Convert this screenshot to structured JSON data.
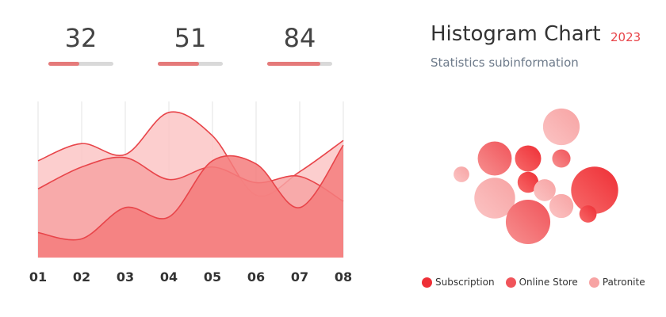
{
  "stats": [
    {
      "value": "32",
      "progress": 0.48
    },
    {
      "value": "51",
      "progress": 0.64
    },
    {
      "value": "84",
      "progress": 0.82
    }
  ],
  "header": {
    "title": "Histogram Chart",
    "year": "2023",
    "subtitle": "Statistics subinformation"
  },
  "colors": {
    "accent": "#e8454a",
    "subscription": "#ee2f36",
    "online_store": "#f0545a",
    "patronite": "#f7a3a3",
    "grid": "#e3e3e3",
    "progress_track": "#d9d9d9",
    "progress_fill": "#e57a7a"
  },
  "chart_data": [
    {
      "type": "area",
      "categories": [
        "01",
        "02",
        "03",
        "04",
        "05",
        "06",
        "07",
        "08"
      ],
      "ylim": [
        0,
        100
      ],
      "grid": true,
      "series": [
        {
          "values": [
            16,
            12,
            32,
            26,
            62,
            60,
            32,
            72
          ],
          "fill": "#f47c7c",
          "stroke": "#e8454a"
        },
        {
          "values": [
            44,
            58,
            64,
            50,
            58,
            48,
            52,
            36
          ],
          "fill": "#f7a3a3",
          "stroke": "#e8454a"
        },
        {
          "values": [
            62,
            73,
            66,
            93,
            78,
            40,
            55,
            75
          ],
          "fill": "#fbc6c6",
          "stroke": "#e8454a"
        }
      ]
    },
    {
      "type": "scatter",
      "legend": {
        "position": "bottom",
        "items": [
          {
            "label": "Subscription",
            "color": "#ee2f36"
          },
          {
            "label": "Online Store",
            "color": "#f0545a"
          },
          {
            "label": "Patronite",
            "color": "#f7a3a3"
          }
        ]
      },
      "bubbles": [
        {
          "x": 1,
          "y": 5,
          "size": 3,
          "series": 2
        },
        {
          "x": 2,
          "y": 6,
          "size": 6.5,
          "series": 1
        },
        {
          "x": 3,
          "y": 6,
          "size": 5,
          "series": 0
        },
        {
          "x": 4,
          "y": 6,
          "size": 3.5,
          "series": 1
        },
        {
          "x": 4,
          "y": 8,
          "size": 7,
          "series": 2
        },
        {
          "x": 5,
          "y": 4,
          "size": 9,
          "series": 0
        },
        {
          "x": 3,
          "y": 4.5,
          "size": 4,
          "series": 0
        },
        {
          "x": 3.5,
          "y": 4,
          "size": 4.2,
          "series": 2
        },
        {
          "x": 2,
          "y": 3.5,
          "size": 7.8,
          "series": 2
        },
        {
          "x": 3,
          "y": 2,
          "size": 8.5,
          "series": 1
        },
        {
          "x": 4,
          "y": 3,
          "size": 4.6,
          "series": 2
        },
        {
          "x": 4.8,
          "y": 2.5,
          "size": 3.3,
          "series": 0
        }
      ]
    }
  ]
}
